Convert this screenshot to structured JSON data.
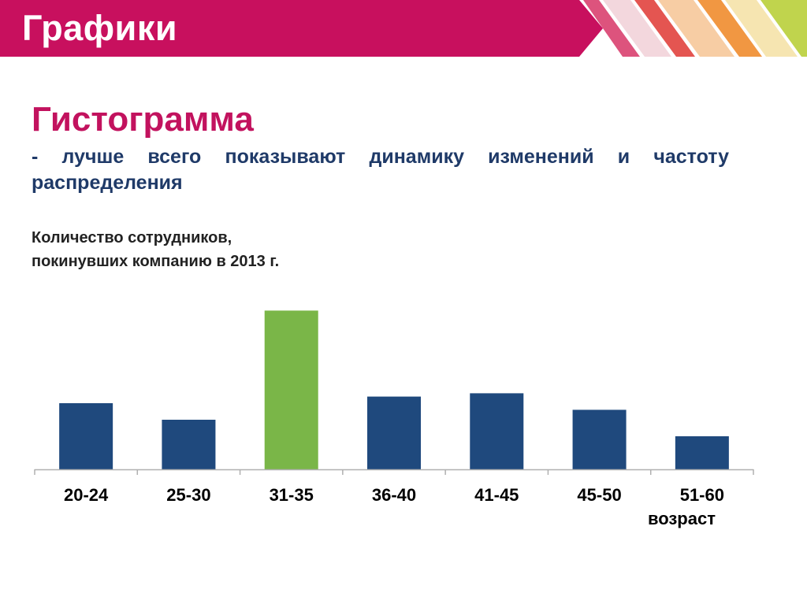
{
  "slide": {
    "title": "Графики",
    "heading": "Гистограмма",
    "subtitle": "- лучше всего показывают динамику изменений и частоту распределения"
  },
  "colors": {
    "header": "#c8105e",
    "heading": "#c2125e",
    "subtitle": "#1f3a68",
    "bar": "#1f497d",
    "bar_highlight": "#7ab648"
  },
  "chart_data": {
    "type": "bar",
    "title_lines": [
      "Количество сотрудников,",
      "покинувших компанию в 2013 г."
    ],
    "categories": [
      "20-24",
      "25-30",
      "31-35",
      "36-40",
      "41-45",
      "45-50",
      "51-60"
    ],
    "values": [
      40,
      30,
      96,
      44,
      46,
      36,
      20
    ],
    "highlight_index": 2,
    "xlabel": "возраст",
    "ylabel": "",
    "ylim": [
      0,
      100
    ],
    "grid": false,
    "legend": "none"
  }
}
